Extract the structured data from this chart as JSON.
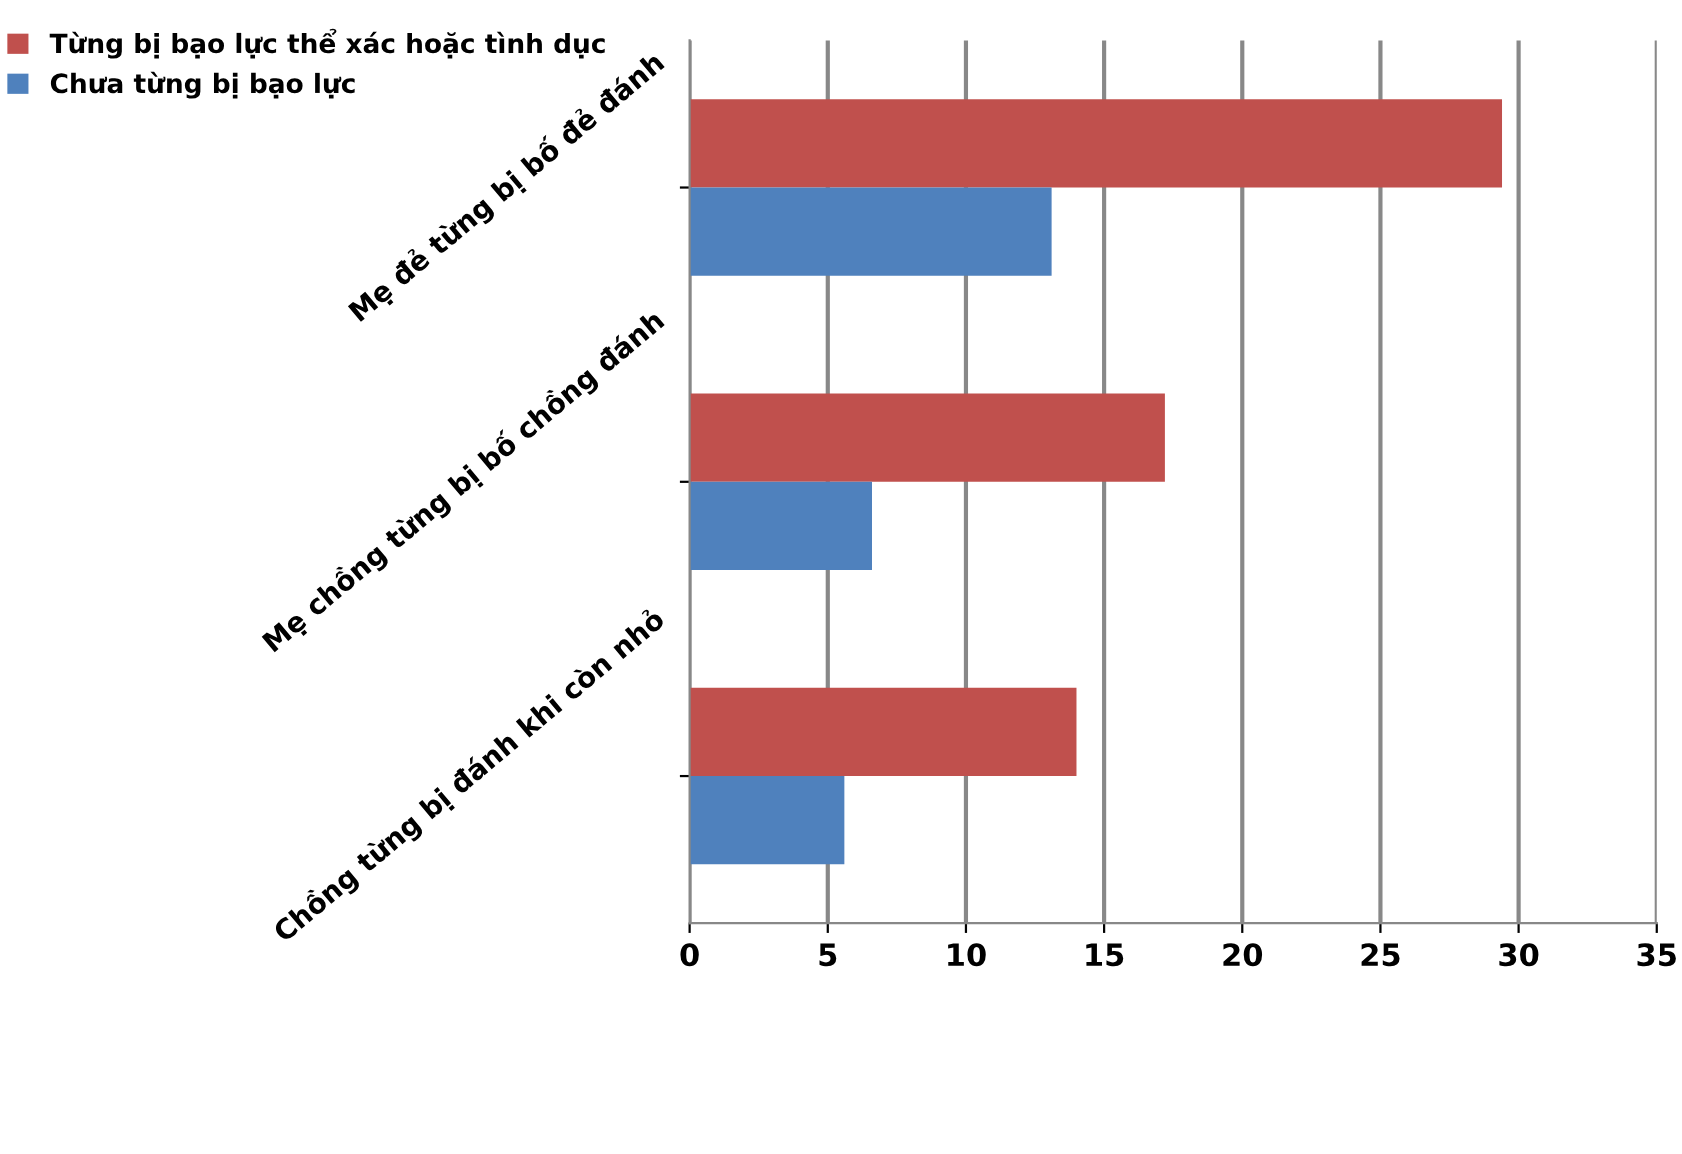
{
  "chart_data": {
    "type": "bar",
    "orientation": "horizontal",
    "categories": [
      "Mẹ đẻ từng bị bố đẻ đánh",
      "Mẹ chồng từng bị bố chồng đánh",
      "Chồng từng bị đánh khi còn nhỏ"
    ],
    "series": [
      {
        "name": "Từng bị bạo lực thể xác hoặc tình dục",
        "color": "#c0504d",
        "values": [
          29.4,
          17.2,
          14.0
        ]
      },
      {
        "name": "Chưa từng bị bạo lực",
        "color": "#4f81bd",
        "values": [
          13.1,
          6.6,
          5.6
        ]
      }
    ],
    "xlim": [
      0,
      35
    ],
    "xticks": [
      0,
      5,
      10,
      15,
      20,
      25,
      30,
      35
    ],
    "grid": "x",
    "legend": "top left"
  }
}
